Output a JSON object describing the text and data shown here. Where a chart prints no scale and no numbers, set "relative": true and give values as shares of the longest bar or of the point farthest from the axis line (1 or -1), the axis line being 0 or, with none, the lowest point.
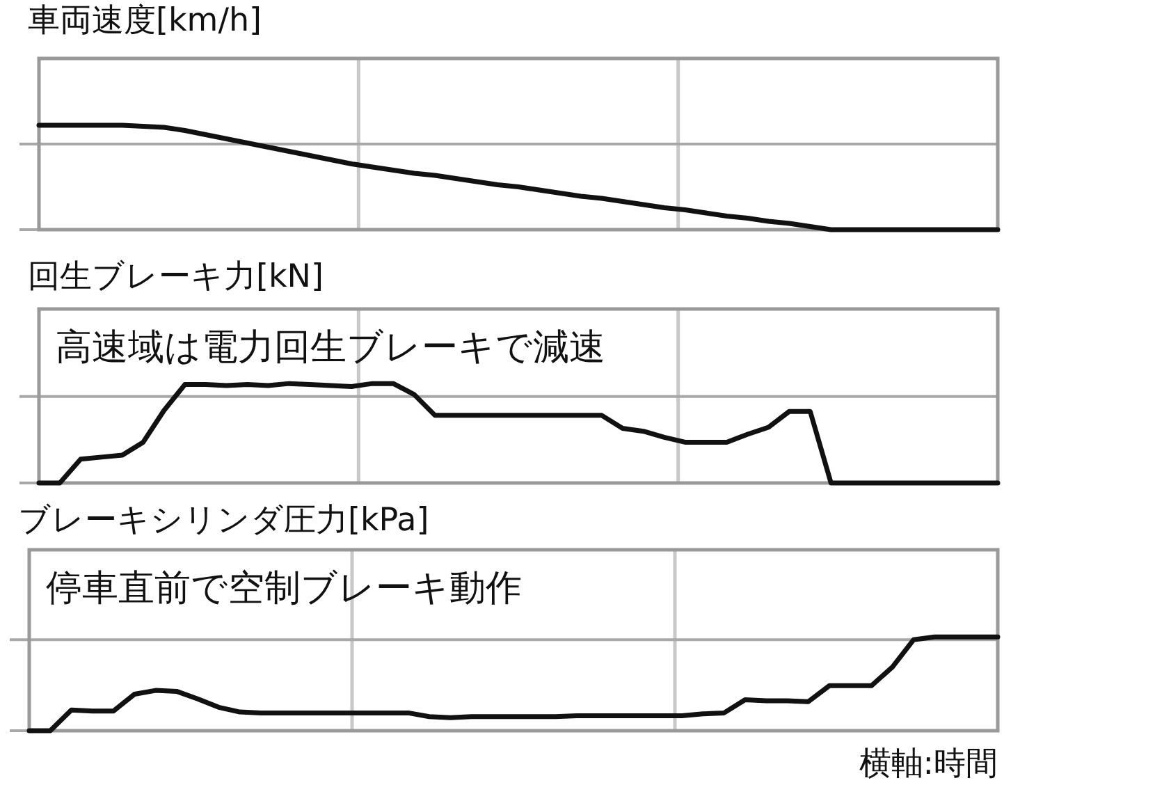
{
  "chart_data": [
    {
      "type": "line",
      "title": "車両速度[km/h]",
      "relative": true,
      "grid": true,
      "ref_lines": [
        {
          "axis": "y",
          "value": 0.82,
          "color": "#a8a8a8"
        }
      ],
      "categories": [
        null,
        null,
        null,
        null,
        null,
        null,
        null,
        null,
        null,
        null,
        null,
        null,
        null,
        null,
        null,
        null,
        null,
        null,
        null,
        null,
        null,
        null,
        null,
        null,
        null,
        null,
        null,
        null,
        null,
        null,
        null,
        null,
        null,
        null,
        null,
        null,
        null,
        null,
        null,
        null,
        null,
        null,
        null,
        null,
        null,
        null,
        null
      ],
      "series": [
        {
          "color": "#111111",
          "values": [
            1.0,
            1.0,
            1.0,
            1.0,
            1.0,
            0.99,
            0.98,
            0.95,
            0.91,
            0.87,
            0.83,
            0.79,
            0.75,
            0.71,
            0.67,
            0.63,
            0.6,
            0.57,
            0.54,
            0.52,
            0.49,
            0.46,
            0.43,
            0.41,
            0.38,
            0.35,
            0.32,
            0.3,
            0.27,
            0.24,
            0.21,
            0.19,
            0.16,
            0.13,
            0.11,
            0.08,
            0.06,
            0.03,
            0,
            0,
            0,
            0,
            0,
            0,
            0,
            0,
            0
          ]
        }
      ]
    },
    {
      "type": "line",
      "title": "回生ブレーキ力[kN]",
      "relative": true,
      "grid": true,
      "ref_lines": [
        {
          "axis": "y",
          "value": 0.87,
          "color": "#a8a8a8"
        }
      ],
      "annotations": [
        "高速域は電力回生ブレーキで減速"
      ],
      "categories": [
        null,
        null,
        null,
        null,
        null,
        null,
        null,
        null,
        null,
        null,
        null,
        null,
        null,
        null,
        null,
        null,
        null,
        null,
        null,
        null,
        null,
        null,
        null,
        null,
        null,
        null,
        null,
        null,
        null,
        null,
        null,
        null,
        null,
        null,
        null,
        null,
        null,
        null,
        null,
        null,
        null,
        null,
        null,
        null,
        null,
        null,
        null
      ],
      "series": [
        {
          "color": "#111111",
          "values": [
            0,
            0,
            0.24,
            0.26,
            0.28,
            0.41,
            0.73,
            0.99,
            0.99,
            0.98,
            0.99,
            0.98,
            1.0,
            0.99,
            0.98,
            0.97,
            1.0,
            1.0,
            0.89,
            0.68,
            0.68,
            0.68,
            0.68,
            0.68,
            0.68,
            0.68,
            0.68,
            0.68,
            0.55,
            0.52,
            0.46,
            0.41,
            0.41,
            0.41,
            0.49,
            0.56,
            0.72,
            0.72,
            0,
            0,
            0,
            0,
            0,
            0,
            0,
            0,
            0
          ]
        }
      ]
    },
    {
      "type": "line",
      "title": "ブレーキシリンダ圧力[kPa]",
      "xlabel": "横軸:時間",
      "relative": true,
      "grid": true,
      "ref_lines": [
        {
          "axis": "y",
          "value": 0.97,
          "color": "#a8a8a8"
        }
      ],
      "annotations": [
        "停車直前で空制ブレーキ動作"
      ],
      "categories": [
        null,
        null,
        null,
        null,
        null,
        null,
        null,
        null,
        null,
        null,
        null,
        null,
        null,
        null,
        null,
        null,
        null,
        null,
        null,
        null,
        null,
        null,
        null,
        null,
        null,
        null,
        null,
        null,
        null,
        null,
        null,
        null,
        null,
        null,
        null,
        null,
        null,
        null,
        null,
        null,
        null,
        null,
        null,
        null,
        null,
        null,
        null
      ],
      "series": [
        {
          "color": "#111111",
          "values": [
            0,
            0,
            0.22,
            0.21,
            0.21,
            0.39,
            0.43,
            0.42,
            0.34,
            0.25,
            0.2,
            0.19,
            0.19,
            0.19,
            0.19,
            0.19,
            0.19,
            0.19,
            0.19,
            0.15,
            0.14,
            0.15,
            0.15,
            0.15,
            0.15,
            0.15,
            0.16,
            0.16,
            0.16,
            0.16,
            0.16,
            0.16,
            0.18,
            0.19,
            0.33,
            0.32,
            0.32,
            0.31,
            0.48,
            0.48,
            0.48,
            0.68,
            0.97,
            1.0,
            1.0,
            1.0,
            1.0
          ]
        }
      ]
    }
  ]
}
